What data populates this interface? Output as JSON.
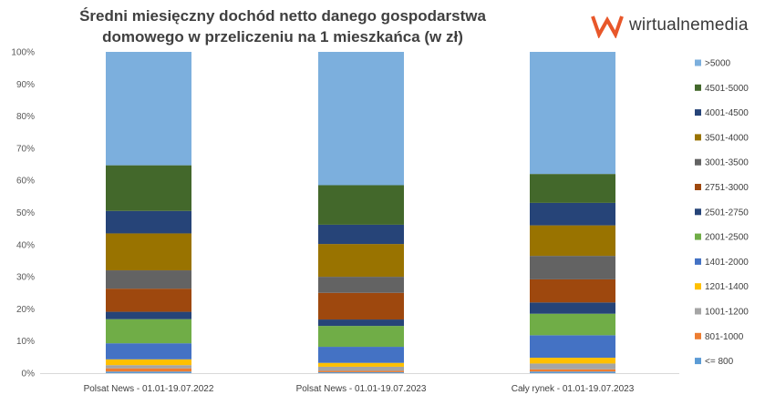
{
  "header": {
    "title_line1": "Średni miesięczny dochód netto danego gospodarstwa",
    "title_line2": "domowego w przeliczeniu na 1 mieszkańca (w zł)",
    "logo_text": "wirtualnemedia",
    "logo_icon": "wm-logo-icon",
    "logo_color": "#e8572a"
  },
  "chart_data": {
    "type": "bar",
    "stacked": true,
    "percent": true,
    "title": "Średni miesięczny dochód netto danego gospodarstwa domowego w przeliczeniu na 1 mieszkańca (w zł)",
    "categories": [
      "Polsat News - 01.01-19.07.2022",
      "Polsat News - 01.01-19.07.2023",
      "Cały rynek - 01.01-19.07.2023"
    ],
    "y_ticks": [
      "0%",
      "10%",
      "20%",
      "30%",
      "40%",
      "50%",
      "60%",
      "70%",
      "80%",
      "90%",
      "100%"
    ],
    "ylim": [
      0,
      100
    ],
    "grid": false,
    "legend_position": "right",
    "series": [
      {
        "name": "<= 800",
        "color": "#5b9bd5",
        "values": [
          0.5,
          0.3,
          0.5
        ]
      },
      {
        "name": "801-1000",
        "color": "#ed7d31",
        "values": [
          1.0,
          0.4,
          0.7
        ]
      },
      {
        "name": "1001-1200",
        "color": "#a5a5a5",
        "values": [
          1.0,
          1.3,
          1.8
        ]
      },
      {
        "name": "1201-1400",
        "color": "#ffc000",
        "values": [
          1.8,
          1.2,
          1.8
        ]
      },
      {
        "name": "1401-2000",
        "color": "#4472c4",
        "values": [
          5.0,
          5.0,
          7.0
        ]
      },
      {
        "name": "2001-2500",
        "color": "#70ad47",
        "values": [
          7.5,
          6.5,
          6.7
        ]
      },
      {
        "name": "2501-2750",
        "color": "#264478",
        "values": [
          2.3,
          2.0,
          3.5
        ]
      },
      {
        "name": "2751-3000",
        "color": "#9e480e",
        "values": [
          7.2,
          8.3,
          7.2
        ]
      },
      {
        "name": "3001-3500",
        "color": "#636363",
        "values": [
          5.7,
          5.0,
          7.3
        ]
      },
      {
        "name": "3501-4000",
        "color": "#997300",
        "values": [
          11.5,
          10.2,
          9.5
        ]
      },
      {
        "name": "4001-4500",
        "color": "#264478",
        "values": [
          7.0,
          6.0,
          7.0
        ]
      },
      {
        "name": "4501-5000",
        "color": "#43682b",
        "values": [
          14.2,
          12.3,
          9.0
        ]
      },
      {
        "name": ">5000",
        "color": "#7cafdd",
        "values": [
          35.3,
          41.5,
          38.0
        ]
      }
    ]
  }
}
